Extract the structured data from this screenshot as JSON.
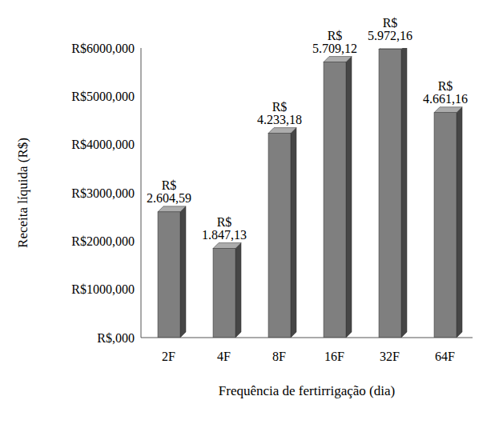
{
  "chart_data": {
    "type": "bar",
    "categories": [
      "2F",
      "4F",
      "8F",
      "16F",
      "32F",
      "64F"
    ],
    "values": [
      2604.59,
      1847.13,
      4233.18,
      5709.12,
      5972.16,
      4661.16
    ],
    "value_labels": [
      "R$ 2.604,59",
      "R$ 1.847,13",
      "R$ 4.233,18",
      "R$ 5.709,12",
      "R$ 5.972,16",
      "R$ 4.661,16"
    ],
    "data_labels": true,
    "color": "#7f7f7f",
    "x_label": "Frequência de fertirrigação (dia)",
    "y_label": "Receita líquida (R$)",
    "ylim": [
      0,
      6000
    ],
    "yticks": [
      {
        "value": 0,
        "label": "R$,000"
      },
      {
        "value": 1000,
        "label": "R$1000,000"
      },
      {
        "value": 2000,
        "label": "R$2000,000"
      },
      {
        "value": 3000,
        "label": "R$3000,000"
      },
      {
        "value": 4000,
        "label": "R$4000,000"
      },
      {
        "value": 5000,
        "label": "R$5000,000"
      },
      {
        "value": 6000,
        "label": "R$6000,000"
      }
    ],
    "grid": false
  }
}
